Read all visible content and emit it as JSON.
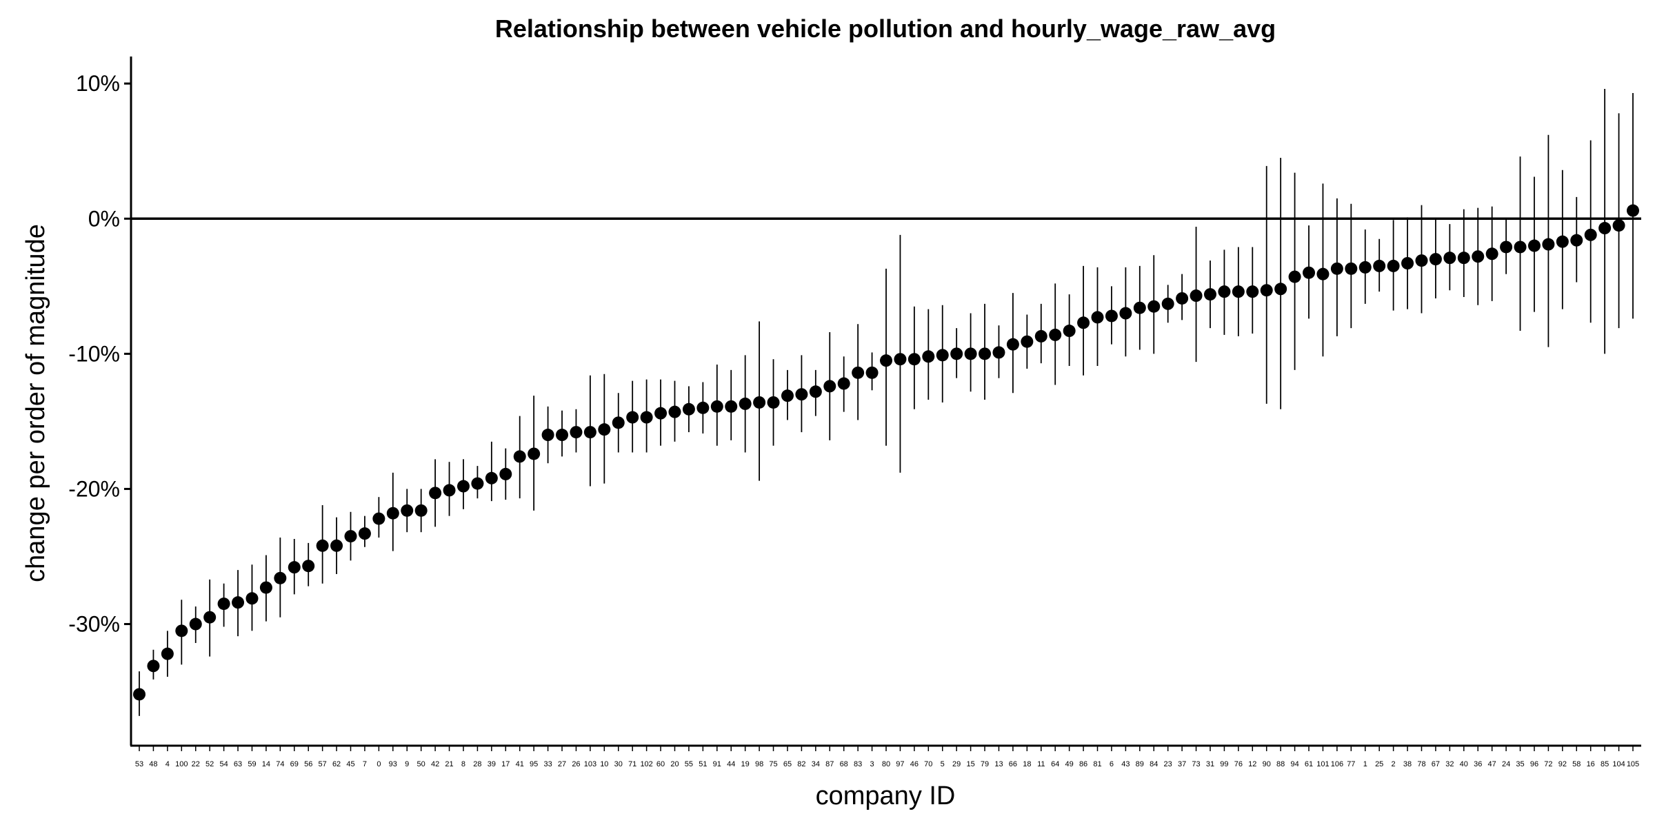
{
  "chart_data": {
    "type": "scatter",
    "title": "Relationship between vehicle pollution and hourly_wage_raw_avg",
    "xlabel": "company ID",
    "ylabel": "change per order of magnitude",
    "y_unit": "%",
    "ylim": [
      -39,
      12
    ],
    "yticks": [
      10,
      0,
      -10,
      -20,
      -30
    ],
    "ytick_labels": [
      "10%",
      "0%",
      "-10%",
      "-20%",
      "-30%"
    ],
    "reference_line": 0,
    "grid": false,
    "legend": "none",
    "colors": {
      "marker": "#000000",
      "axis": "#000000"
    },
    "categories": [
      "53",
      "48",
      "4",
      "100",
      "22",
      "52",
      "54",
      "63",
      "59",
      "14",
      "74",
      "69",
      "56",
      "57",
      "62",
      "45",
      "7",
      "0",
      "93",
      "9",
      "50",
      "42",
      "21",
      "8",
      "28",
      "39",
      "17",
      "41",
      "95",
      "33",
      "27",
      "26",
      "103",
      "10",
      "30",
      "71",
      "102",
      "60",
      "20",
      "55",
      "51",
      "91",
      "44",
      "19",
      "98",
      "75",
      "65",
      "82",
      "34",
      "87",
      "68",
      "83",
      "3",
      "80",
      "97",
      "46",
      "70",
      "5",
      "29",
      "15",
      "79",
      "13",
      "66",
      "18",
      "11",
      "64",
      "49",
      "86",
      "81",
      "6",
      "43",
      "89",
      "84",
      "23",
      "37",
      "73",
      "31",
      "99",
      "76",
      "12",
      "90",
      "88",
      "94",
      "61",
      "101",
      "106",
      "77",
      "1",
      "25",
      "2",
      "38",
      "78",
      "67",
      "32",
      "40",
      "36",
      "47",
      "24",
      "35",
      "96",
      "72",
      "92",
      "58",
      "16",
      "85",
      "104",
      "105"
    ],
    "values": [
      -35.2,
      -33.1,
      -32.2,
      -30.5,
      -30.0,
      -29.5,
      -28.5,
      -28.4,
      -28.1,
      -27.3,
      -26.6,
      -25.8,
      -25.7,
      -24.2,
      -24.2,
      -23.5,
      -23.3,
      -22.2,
      -21.8,
      -21.6,
      -21.6,
      -20.3,
      -20.1,
      -19.8,
      -19.6,
      -19.2,
      -18.9,
      -17.6,
      -17.4,
      -16.0,
      -16.0,
      -15.8,
      -15.8,
      -15.6,
      -15.1,
      -14.7,
      -14.7,
      -14.4,
      -14.3,
      -14.1,
      -14.0,
      -13.9,
      -13.9,
      -13.7,
      -13.6,
      -13.6,
      -13.1,
      -13.0,
      -12.8,
      -12.4,
      -12.2,
      -11.4,
      -11.4,
      -10.5,
      -10.4,
      -10.4,
      -10.2,
      -10.1,
      -10.0,
      -10.0,
      -10.0,
      -9.9,
      -9.3,
      -9.1,
      -8.7,
      -8.6,
      -8.3,
      -7.7,
      -7.3,
      -7.2,
      -7.0,
      -6.6,
      -6.5,
      -6.3,
      -5.9,
      -5.7,
      -5.6,
      -5.4,
      -5.4,
      -5.4,
      -5.3,
      -5.2,
      -4.3,
      -4.0,
      -4.1,
      -3.7,
      -3.7,
      -3.6,
      -3.5,
      -3.5,
      -3.3,
      -3.1,
      -3.0,
      -2.9,
      -2.9,
      -2.8,
      -2.6,
      -2.1,
      -2.1,
      -2.0,
      -1.9,
      -1.7,
      -1.6,
      -1.2,
      -0.7,
      -0.5,
      0.6
    ],
    "lower": [
      -36.8,
      -34.1,
      -33.9,
      -33.0,
      -31.4,
      -32.4,
      -30.2,
      -30.9,
      -30.5,
      -29.8,
      -29.5,
      -27.8,
      -27.2,
      -27.0,
      -26.3,
      -25.3,
      -24.3,
      -23.6,
      -24.6,
      -23.2,
      -23.2,
      -22.8,
      -22.0,
      -21.5,
      -20.7,
      -20.9,
      -20.8,
      -20.7,
      -21.6,
      -18.1,
      -17.6,
      -17.3,
      -19.8,
      -19.6,
      -17.3,
      -17.3,
      -17.3,
      -16.8,
      -16.5,
      -15.8,
      -15.9,
      -16.8,
      -16.4,
      -17.3,
      -19.4,
      -16.8,
      -14.9,
      -15.8,
      -14.6,
      -16.4,
      -14.3,
      -14.9,
      -12.7,
      -16.8,
      -18.8,
      -14.1,
      -13.4,
      -13.6,
      -11.8,
      -12.8,
      -13.4,
      -11.8,
      -12.9,
      -11.1,
      -10.7,
      -12.3,
      -10.9,
      -11.6,
      -10.9,
      -9.3,
      -10.2,
      -9.7,
      -10.0,
      -7.7,
      -7.5,
      -10.6,
      -8.1,
      -8.6,
      -8.7,
      -8.5,
      -13.7,
      -14.1,
      -11.2,
      -7.4,
      -10.2,
      -8.7,
      -8.1,
      -6.3,
      -5.4,
      -6.8,
      -6.7,
      -7.0,
      -5.9,
      -5.3,
      -5.8,
      -6.4,
      -6.1,
      -4.1,
      -8.3,
      -6.9,
      -9.5,
      -6.7,
      -4.7,
      -7.7,
      -10.0,
      -8.1,
      -7.4
    ],
    "upper": [
      -33.5,
      -31.9,
      -30.5,
      -28.2,
      -28.7,
      -26.7,
      -27.0,
      -26.0,
      -25.6,
      -24.9,
      -23.6,
      -23.7,
      -24.0,
      -21.2,
      -22.1,
      -21.7,
      -22.0,
      -20.6,
      -18.8,
      -20.0,
      -20.0,
      -17.8,
      -18.0,
      -17.8,
      -18.3,
      -16.5,
      -17.0,
      -14.6,
      -13.1,
      -13.9,
      -14.2,
      -14.1,
      -11.6,
      -11.5,
      -12.9,
      -12.0,
      -11.9,
      -11.9,
      -12.0,
      -12.4,
      -12.1,
      -10.8,
      -11.2,
      -10.1,
      -7.6,
      -10.4,
      -11.2,
      -10.1,
      -11.2,
      -8.4,
      -10.2,
      -7.8,
      -9.9,
      -3.7,
      -1.2,
      -6.5,
      -6.7,
      -6.4,
      -8.1,
      -7.0,
      -6.3,
      -7.9,
      -5.5,
      -7.1,
      -6.3,
      -4.8,
      -5.6,
      -3.5,
      -3.6,
      -5.0,
      -3.6,
      -3.5,
      -2.7,
      -4.9,
      -4.1,
      -0.6,
      -3.1,
      -2.3,
      -2.1,
      -2.1,
      3.9,
      4.5,
      3.4,
      -0.5,
      2.6,
      1.5,
      1.1,
      -0.8,
      -1.5,
      -0.1,
      0.1,
      1.0,
      0.0,
      -0.4,
      0.7,
      0.8,
      0.9,
      0.0,
      4.6,
      3.1,
      6.2,
      3.6,
      1.6,
      5.8,
      9.6,
      7.8,
      9.3
    ]
  }
}
